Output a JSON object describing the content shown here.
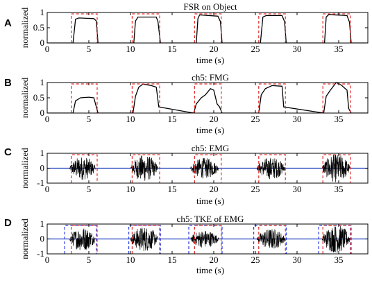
{
  "figure": {
    "panels": [
      {
        "letter": "A",
        "title": "FSR on Object",
        "xlabel": "time (s)",
        "ylabel": "normalized",
        "xticks": [
          0,
          5,
          10,
          15,
          20,
          25,
          30,
          35
        ],
        "yticks": [
          "0",
          "0.5",
          "1"
        ],
        "box_color": "#e32b2b"
      },
      {
        "letter": "B",
        "title": "ch5: FMG",
        "xlabel": "time (s)",
        "ylabel": "normalized",
        "xticks": [
          0,
          5,
          10,
          15,
          20,
          25,
          30,
          35
        ],
        "yticks": [
          "0",
          "0.5",
          "1"
        ],
        "box_color": "#e32b2b"
      },
      {
        "letter": "C",
        "title": "ch5: EMG",
        "xlabel": "time (s)",
        "ylabel": "normalized",
        "xticks": [
          0,
          5,
          10,
          15,
          20,
          25,
          30,
          35
        ],
        "yticks": [
          "-1",
          "0",
          "1"
        ],
        "box_color": "#e32b2b"
      },
      {
        "letter": "D",
        "title": "ch5: TKE of EMG",
        "xlabel": "time (s)",
        "ylabel": "normalized",
        "xticks": [
          0,
          5,
          10,
          15,
          20,
          25,
          30,
          35
        ],
        "yticks": [
          "-1",
          "0",
          "1"
        ],
        "box_color": "#e32b2b",
        "box2_color": "#2b3ce3"
      }
    ]
  },
  "chart_data": [
    {
      "type": "line",
      "title": "FSR on Object",
      "xlabel": "time (s)",
      "ylabel": "normalized",
      "xlim": [
        0,
        38.5
      ],
      "ylim": [
        0,
        1
      ],
      "series": [
        {
          "x": [
            0,
            3.1,
            3.4,
            3.8,
            5.6,
            5.9,
            6.1,
            10.4,
            10.6,
            10.9,
            13.1,
            13.3,
            13.6,
            17.9,
            18.1,
            18.3,
            20.5,
            20.8,
            21.0,
            25.6,
            25.9,
            26.3,
            28.2,
            28.5,
            28.7,
            33.3,
            33.5,
            33.8,
            36.0,
            36.3,
            36.5,
            38.5
          ],
          "y": [
            0,
            0,
            0.78,
            0.82,
            0.8,
            0.72,
            0,
            0,
            0.72,
            0.85,
            0.85,
            0.7,
            0,
            0,
            0.8,
            0.92,
            0.88,
            0.7,
            0,
            0,
            0.85,
            0.9,
            0.9,
            0.7,
            0,
            0,
            0.85,
            0.93,
            0.9,
            0.68,
            0,
            0
          ]
        }
      ],
      "windows": [
        [
          2.9,
          6.0
        ],
        [
          10.2,
          13.5
        ],
        [
          17.7,
          20.9
        ],
        [
          25.4,
          28.6
        ],
        [
          33.1,
          36.4
        ]
      ]
    },
    {
      "type": "line",
      "title": "ch5: FMG",
      "xlabel": "time (s)",
      "ylabel": "normalized",
      "xlim": [
        0,
        38.5
      ],
      "ylim": [
        0,
        1
      ],
      "series": [
        {
          "x": [
            0,
            3.1,
            3.4,
            4.0,
            5.0,
            5.6,
            5.8,
            6.1,
            10.3,
            10.6,
            11.0,
            11.5,
            12.5,
            13.1,
            13.4,
            17.6,
            17.9,
            18.5,
            19.0,
            19.6,
            20.0,
            20.4,
            20.7,
            21.0,
            25.4,
            25.7,
            26.2,
            27.0,
            28.2,
            28.4,
            33.2,
            33.5,
            34.0,
            34.7,
            35.3,
            36.0,
            36.2,
            36.5,
            38.5
          ],
          "y": [
            0,
            0,
            0.4,
            0.5,
            0.52,
            0.5,
            0.3,
            0,
            0,
            0.55,
            0.85,
            0.95,
            0.9,
            0.85,
            0.2,
            0,
            0.3,
            0.5,
            0.6,
            0.8,
            0.75,
            0.3,
            0.2,
            0,
            0,
            0.6,
            0.8,
            0.9,
            0.88,
            0.2,
            0,
            0.55,
            0.75,
            1.0,
            0.92,
            0.75,
            0.15,
            0,
            0
          ]
        }
      ],
      "windows": [
        [
          2.9,
          6.0
        ],
        [
          10.2,
          13.5
        ],
        [
          17.7,
          20.9
        ],
        [
          25.4,
          28.6
        ],
        [
          33.1,
          36.4
        ]
      ]
    },
    {
      "type": "line",
      "title": "ch5: EMG",
      "xlabel": "time (s)",
      "ylabel": "normalized",
      "xlim": [
        0,
        38.5
      ],
      "ylim": [
        -1,
        1
      ],
      "bursts": [
        {
          "start": 2.7,
          "end": 5.8,
          "peak": 0.8
        },
        {
          "start": 10.0,
          "end": 13.3,
          "peak": 0.9
        },
        {
          "start": 17.2,
          "end": 20.6,
          "peak": 0.7
        },
        {
          "start": 25.2,
          "end": 28.6,
          "peak": 0.75
        },
        {
          "start": 33.0,
          "end": 36.4,
          "peak": 0.95
        }
      ],
      "windows": [
        [
          2.9,
          6.0
        ],
        [
          10.2,
          13.5
        ],
        [
          17.7,
          20.9
        ],
        [
          25.4,
          28.6
        ],
        [
          33.1,
          36.4
        ]
      ]
    },
    {
      "type": "line",
      "title": "ch5: TKE of EMG",
      "xlabel": "time (s)",
      "ylabel": "normalized",
      "xlim": [
        0,
        38.5
      ],
      "ylim": [
        -1,
        1
      ],
      "bursts": [
        {
          "start": 2.7,
          "end": 5.8,
          "peak": 0.8
        },
        {
          "start": 10.0,
          "end": 13.3,
          "peak": 0.85
        },
        {
          "start": 17.2,
          "end": 20.6,
          "peak": 0.6
        },
        {
          "start": 25.2,
          "end": 28.6,
          "peak": 0.7
        },
        {
          "start": 33.0,
          "end": 36.4,
          "peak": 0.95
        }
      ],
      "windows": [
        [
          2.9,
          6.0
        ],
        [
          10.2,
          13.5
        ],
        [
          17.7,
          20.9
        ],
        [
          25.4,
          28.6
        ],
        [
          33.1,
          36.4
        ]
      ],
      "windows2": [
        [
          2.1,
          5.9
        ],
        [
          9.8,
          13.6
        ],
        [
          17.0,
          21.0
        ],
        [
          24.8,
          28.7
        ],
        [
          32.6,
          36.5
        ]
      ]
    }
  ]
}
